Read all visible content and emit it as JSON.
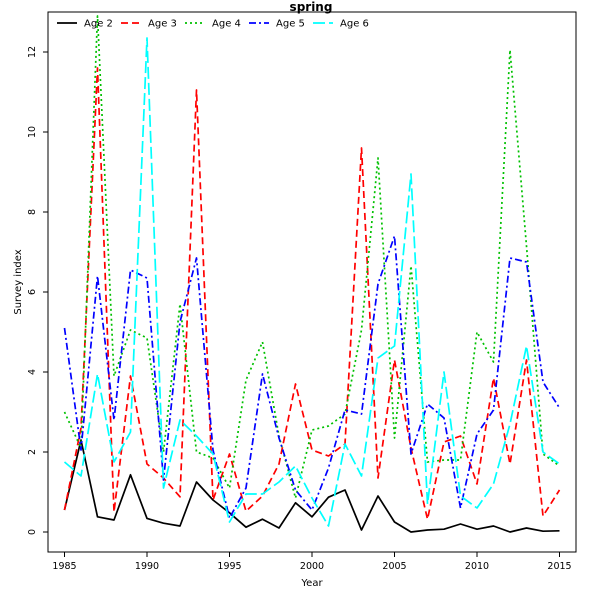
{
  "chart_data": {
    "type": "line",
    "title": "spring",
    "xlabel": "Year",
    "ylabel": "Survey index",
    "xlim": [
      1984,
      2016
    ],
    "ylim": [
      -0.5,
      13.0
    ],
    "xticks": [
      1985,
      1990,
      1995,
      2000,
      2005,
      2010,
      2015
    ],
    "yticks": [
      0,
      2,
      4,
      6,
      8,
      10,
      12
    ],
    "legend_position": "top-left",
    "x": [
      1985,
      1986,
      1987,
      1988,
      1989,
      1990,
      1991,
      1992,
      1993,
      1994,
      1995,
      1996,
      1997,
      1998,
      1999,
      2000,
      2001,
      2002,
      2003,
      2004,
      2005,
      2006,
      2007,
      2008,
      2009,
      2010,
      2011,
      2012,
      2013,
      2014,
      2015
    ],
    "series": [
      {
        "name": "Age 2",
        "color": "#000000",
        "dash": "solid",
        "values": [
          0.55,
          2.3,
          0.38,
          0.3,
          1.43,
          0.34,
          0.22,
          0.15,
          1.25,
          0.8,
          0.48,
          0.12,
          0.32,
          0.1,
          0.73,
          0.38,
          0.87,
          1.05,
          0.05,
          0.9,
          0.25,
          0.0,
          0.05,
          0.07,
          0.2,
          0.07,
          0.15,
          0.0,
          0.1,
          0.02,
          0.03
        ]
      },
      {
        "name": "Age 3",
        "color": "#ff0000",
        "dash": "dashed",
        "values": [
          0.55,
          2.6,
          11.6,
          0.5,
          3.9,
          1.7,
          1.35,
          0.88,
          11.05,
          0.8,
          1.95,
          0.52,
          0.9,
          1.7,
          3.7,
          2.05,
          1.9,
          2.2,
          9.6,
          1.35,
          4.3,
          2.1,
          0.32,
          2.25,
          2.4,
          1.2,
          3.85,
          1.7,
          4.3,
          0.4,
          1.05
        ]
      },
      {
        "name": "Age 4",
        "color": "#00c000",
        "dash": "dotted",
        "values": [
          3.0,
          2.1,
          12.9,
          3.9,
          5.05,
          4.85,
          2.0,
          5.7,
          2.0,
          1.85,
          1.1,
          3.8,
          4.75,
          2.4,
          0.85,
          2.55,
          2.65,
          2.95,
          5.05,
          9.35,
          2.35,
          6.65,
          1.75,
          1.8,
          1.8,
          5.0,
          4.25,
          12.05,
          7.15,
          1.95,
          1.65
        ]
      },
      {
        "name": "Age 5",
        "color": "#0000ff",
        "dash": "dashdot",
        "values": [
          5.1,
          2.05,
          6.4,
          2.8,
          6.55,
          6.35,
          1.3,
          5.25,
          6.85,
          2.05,
          0.35,
          1.1,
          3.95,
          2.35,
          1.05,
          0.55,
          1.6,
          3.05,
          2.95,
          6.2,
          7.4,
          1.95,
          3.2,
          2.85,
          0.6,
          2.45,
          3.05,
          6.85,
          6.75,
          3.75,
          3.1
        ]
      },
      {
        "name": "Age 6",
        "color": "#00ffff",
        "dash": "longdash",
        "values": [
          1.75,
          1.4,
          3.95,
          1.75,
          2.5,
          12.35,
          1.1,
          2.8,
          2.4,
          1.95,
          0.25,
          0.95,
          0.95,
          1.25,
          1.65,
          0.85,
          0.15,
          2.2,
          1.4,
          4.35,
          4.65,
          8.95,
          0.7,
          4.0,
          0.9,
          0.6,
          1.2,
          2.7,
          4.65,
          2.0,
          1.7
        ]
      }
    ]
  }
}
